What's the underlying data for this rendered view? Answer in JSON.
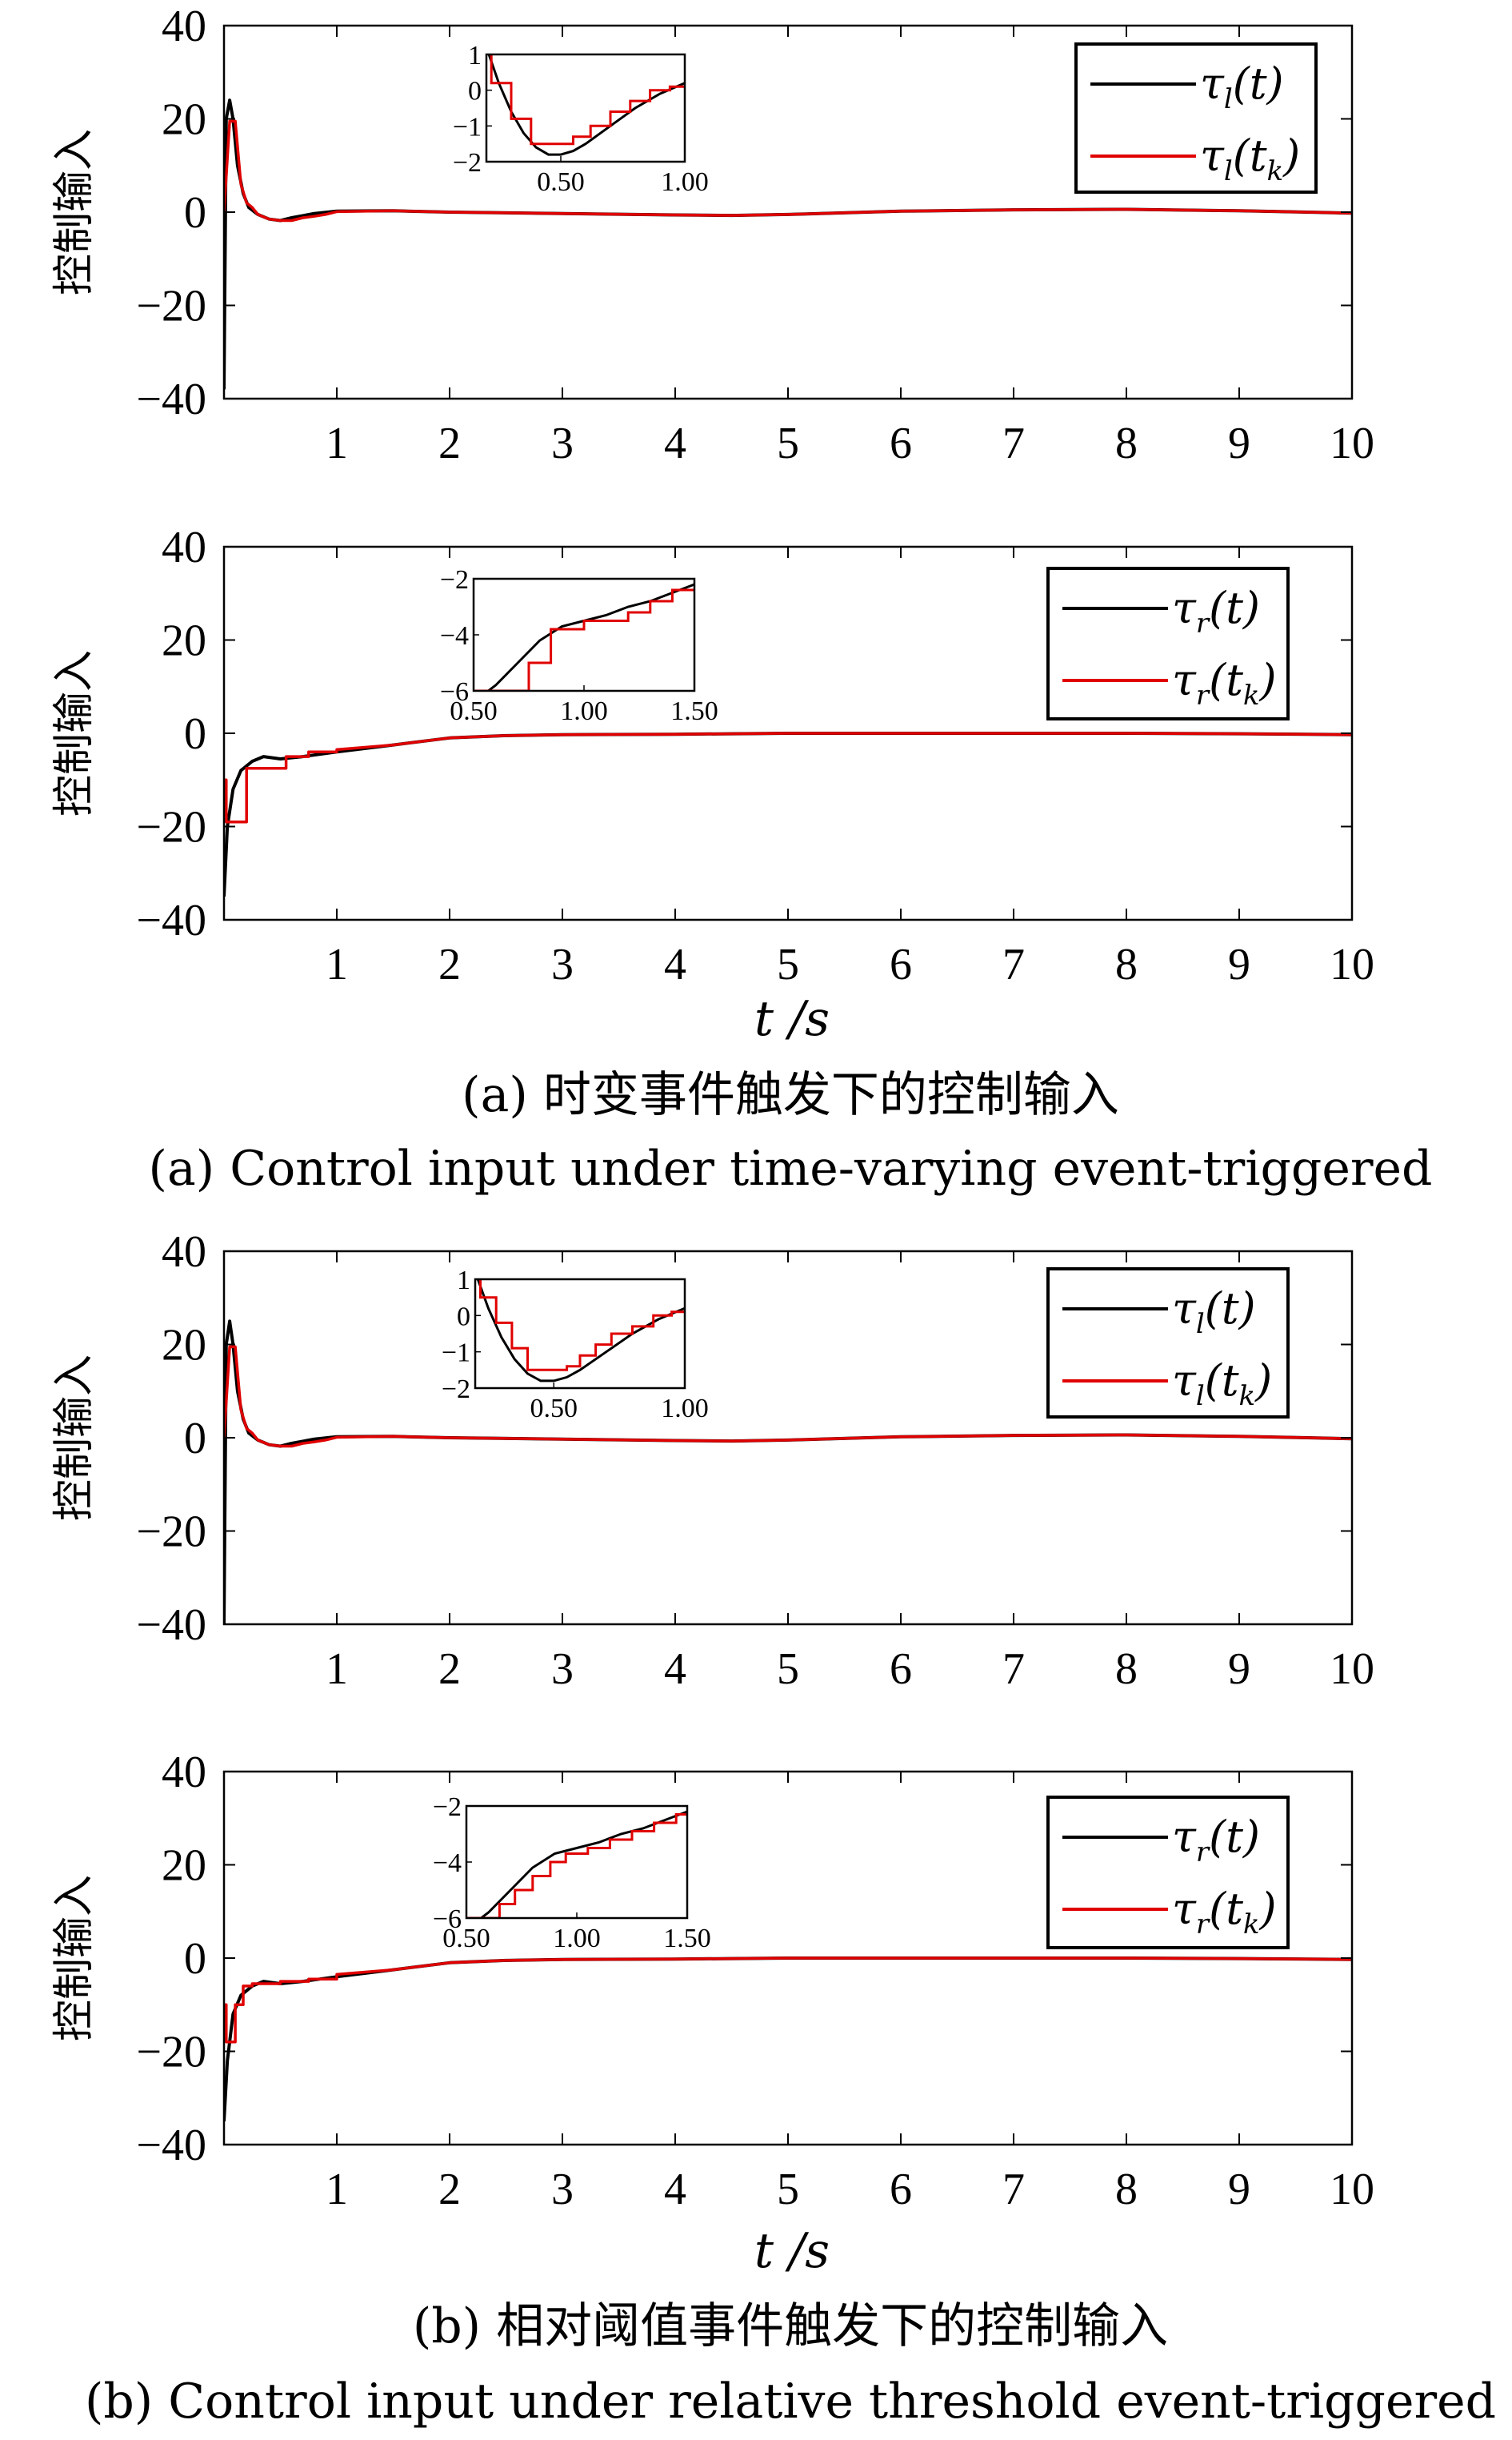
{
  "figure": {
    "caption_a_cn": "(a) 时变事件触发下的控制输入",
    "caption_a_en": "(a) Control input under time-varying event-triggered",
    "caption_b_cn": "(b) 相对阈值事件触发下的控制输入",
    "caption_b_en": "(b) Control input under relative threshold event-triggered",
    "xlabel": "t /s",
    "colors": {
      "continuous": "#000000",
      "triggered": "#e00000"
    }
  },
  "chart_data": [
    {
      "type": "line",
      "id": "a-left",
      "ylabel": "控制输入",
      "xlim": [
        0,
        10
      ],
      "ylim": [
        -40,
        40
      ],
      "xticks": [
        1,
        2,
        3,
        4,
        5,
        6,
        7,
        8,
        9,
        10
      ],
      "yticks": [
        -40,
        -20,
        0,
        20,
        40
      ],
      "legend": [
        "τl(t)",
        "τl(tk)"
      ],
      "legend_placement": "top-right",
      "series": [
        {
          "name": "τl(t)",
          "x": [
            0,
            0.02,
            0.05,
            0.08,
            0.12,
            0.17,
            0.22,
            0.3,
            0.4,
            0.5,
            0.6,
            0.8,
            1,
            1.5,
            2,
            3,
            4,
            4.5,
            5,
            6,
            7,
            8,
            9,
            10
          ],
          "y": [
            -38,
            20,
            24,
            20,
            10,
            4,
            1,
            -0.5,
            -1.5,
            -1.8,
            -1.2,
            -0.3,
            0.2,
            0.3,
            0,
            -0.3,
            -0.6,
            -0.7,
            -0.5,
            0.2,
            0.5,
            0.6,
            0.3,
            -0.2
          ]
        },
        {
          "name": "τl(tk)",
          "x": [
            0,
            0.05,
            0.1,
            0.15,
            0.2,
            0.25,
            0.3,
            0.4,
            0.5,
            0.6,
            0.7,
            0.8,
            0.9,
            1,
            1.5,
            2,
            3,
            4,
            4.5,
            5,
            6,
            7,
            8,
            9,
            10
          ],
          "y": [
            0,
            19.5,
            19.5,
            6,
            2,
            1,
            -0.5,
            -1.5,
            -1.8,
            -1.8,
            -1.2,
            -0.9,
            -0.5,
            0.1,
            0.3,
            0,
            -0.3,
            -0.6,
            -0.7,
            -0.5,
            0.2,
            0.5,
            0.6,
            0.3,
            -0.2
          ]
        }
      ],
      "inset": {
        "xlim": [
          0.2,
          1.0
        ],
        "ylim": [
          -2,
          1
        ],
        "xticks": [
          0.5,
          1.0
        ],
        "xtick_labels": [
          "0.50",
          "1.00"
        ],
        "yticks": [
          -2,
          -1,
          0,
          1
        ],
        "series": [
          {
            "name": "τl(t)",
            "x": [
              0.2,
              0.25,
              0.3,
              0.35,
              0.4,
              0.45,
              0.5,
              0.55,
              0.6,
              0.7,
              0.8,
              0.9,
              1.0
            ],
            "y": [
              1.2,
              0.2,
              -0.6,
              -1.2,
              -1.6,
              -1.8,
              -1.8,
              -1.7,
              -1.5,
              -1.0,
              -0.5,
              -0.1,
              0.2
            ]
          },
          {
            "name": "τl(tk)",
            "x": [
              0.22,
              0.22,
              0.3,
              0.3,
              0.38,
              0.38,
              0.55,
              0.55,
              0.62,
              0.62,
              0.7,
              0.7,
              0.78,
              0.78,
              0.86,
              0.86,
              0.94,
              0.94,
              1.0
            ],
            "y": [
              1.2,
              0.2,
              0.2,
              -0.8,
              -0.8,
              -1.5,
              -1.5,
              -1.3,
              -1.3,
              -1.0,
              -1.0,
              -0.6,
              -0.6,
              -0.3,
              -0.3,
              0.0,
              0.0,
              0.1,
              0.1
            ]
          }
        ]
      }
    },
    {
      "type": "line",
      "id": "a-right",
      "ylabel": "控制输入",
      "xlim": [
        0,
        10
      ],
      "ylim": [
        -40,
        40
      ],
      "xticks": [
        1,
        2,
        3,
        4,
        5,
        6,
        7,
        8,
        9,
        10
      ],
      "yticks": [
        -40,
        -20,
        0,
        20,
        40
      ],
      "legend": [
        "τr(t)",
        "τr(tk)"
      ],
      "legend_placement": "top-right",
      "series": [
        {
          "name": "τr(t)",
          "x": [
            0,
            0.03,
            0.08,
            0.15,
            0.25,
            0.35,
            0.5,
            0.7,
            1,
            1.5,
            2,
            2.5,
            3,
            4,
            5,
            6,
            7,
            8,
            9,
            10
          ],
          "y": [
            -35,
            -20,
            -12,
            -8,
            -6,
            -5,
            -5.5,
            -5,
            -4,
            -2.5,
            -1,
            -0.5,
            -0.3,
            -0.2,
            0,
            0,
            0,
            0,
            -0.1,
            -0.3
          ]
        },
        {
          "name": "τr(tk)",
          "x": [
            0,
            0.02,
            0.02,
            0.1,
            0.1,
            0.2,
            0.2,
            0.55,
            0.55,
            0.75,
            0.75,
            1.0,
            1.0,
            1.5,
            2,
            2.5,
            3,
            4,
            5,
            6,
            7,
            8,
            9,
            10
          ],
          "y": [
            -10,
            -10,
            -19,
            -19,
            -19,
            -19,
            -7.5,
            -7.5,
            -5,
            -5,
            -4,
            -4,
            -3.5,
            -2.5,
            -1,
            -0.5,
            -0.3,
            -0.2,
            0,
            0,
            0,
            0,
            -0.1,
            -0.3
          ]
        }
      ],
      "inset": {
        "xlim": [
          0.5,
          1.5
        ],
        "ylim": [
          -6,
          -2
        ],
        "xticks": [
          0.5,
          1.0,
          1.5
        ],
        "xtick_labels": [
          "0.50",
          "1.00",
          "1.50"
        ],
        "yticks": [
          -6,
          -4,
          -2
        ],
        "series": [
          {
            "name": "τr(t)",
            "x": [
              0.5,
              0.6,
              0.7,
              0.8,
              0.9,
              1.0,
              1.1,
              1.2,
              1.3,
              1.4,
              1.5
            ],
            "y": [
              -6.4,
              -5.8,
              -5.0,
              -4.2,
              -3.7,
              -3.5,
              -3.3,
              -3.0,
              -2.8,
              -2.5,
              -2.2
            ]
          },
          {
            "name": "τr(tk)",
            "x": [
              0.5,
              0.75,
              0.75,
              0.85,
              0.85,
              1.0,
              1.0,
              1.2,
              1.2,
              1.3,
              1.3,
              1.4,
              1.4,
              1.5
            ],
            "y": [
              -6,
              -6,
              -5,
              -5,
              -3.8,
              -3.8,
              -3.5,
              -3.5,
              -3.2,
              -3.2,
              -2.8,
              -2.8,
              -2.4,
              -2.4
            ]
          }
        ]
      }
    },
    {
      "type": "line",
      "id": "b-left",
      "ylabel": "控制输入",
      "xlim": [
        0,
        10
      ],
      "ylim": [
        -40,
        40
      ],
      "xticks": [
        1,
        2,
        3,
        4,
        5,
        6,
        7,
        8,
        9,
        10
      ],
      "yticks": [
        -40,
        -20,
        0,
        20,
        40
      ],
      "legend": [
        "τl(t)",
        "τl(tk)"
      ],
      "legend_placement": "top-right",
      "series": [
        {
          "name": "τl(t)",
          "x": [
            0,
            0.02,
            0.05,
            0.08,
            0.12,
            0.17,
            0.22,
            0.3,
            0.4,
            0.5,
            0.6,
            0.8,
            1,
            1.5,
            2,
            3,
            4,
            4.5,
            5,
            6,
            7,
            8,
            9,
            10
          ],
          "y": [
            -40,
            20,
            25,
            20,
            10,
            4,
            1,
            -0.5,
            -1.5,
            -1.8,
            -1.2,
            -0.3,
            0.2,
            0.3,
            0,
            -0.3,
            -0.6,
            -0.7,
            -0.5,
            0.2,
            0.5,
            0.6,
            0.3,
            -0.2
          ]
        },
        {
          "name": "τl(tk)",
          "x": [
            0,
            0.05,
            0.1,
            0.15,
            0.2,
            0.25,
            0.3,
            0.4,
            0.5,
            0.6,
            0.7,
            0.8,
            0.9,
            1,
            1.5,
            2,
            3,
            4,
            4.5,
            5,
            6,
            7,
            8,
            9,
            10
          ],
          "y": [
            0,
            19.5,
            19.5,
            6,
            2,
            1,
            -0.5,
            -1.5,
            -1.8,
            -1.8,
            -1.2,
            -0.9,
            -0.5,
            0.1,
            0.3,
            0,
            -0.3,
            -0.6,
            -0.7,
            -0.5,
            0.2,
            0.5,
            0.6,
            0.3,
            -0.2
          ]
        }
      ],
      "inset": {
        "xlim": [
          0.2,
          1.0
        ],
        "ylim": [
          -2,
          1
        ],
        "xticks": [
          0.5,
          1.0
        ],
        "xtick_labels": [
          "0.50",
          "1.00"
        ],
        "yticks": [
          -2,
          -1,
          0,
          1
        ],
        "series": [
          {
            "name": "τl(t)",
            "x": [
              0.2,
              0.25,
              0.3,
              0.35,
              0.4,
              0.45,
              0.5,
              0.55,
              0.6,
              0.7,
              0.8,
              0.9,
              1.0
            ],
            "y": [
              1.2,
              0.2,
              -0.6,
              -1.2,
              -1.6,
              -1.8,
              -1.8,
              -1.7,
              -1.5,
              -1.0,
              -0.5,
              -0.1,
              0.2
            ]
          },
          {
            "name": "τl(tk)",
            "x": [
              0.22,
              0.22,
              0.28,
              0.28,
              0.34,
              0.34,
              0.4,
              0.4,
              0.55,
              0.55,
              0.6,
              0.6,
              0.66,
              0.66,
              0.72,
              0.72,
              0.8,
              0.8,
              0.88,
              0.88,
              0.95,
              0.95,
              1.0
            ],
            "y": [
              1.2,
              0.5,
              0.5,
              -0.2,
              -0.2,
              -0.9,
              -0.9,
              -1.5,
              -1.5,
              -1.4,
              -1.4,
              -1.1,
              -1.1,
              -0.8,
              -0.8,
              -0.5,
              -0.5,
              -0.3,
              -0.3,
              0.0,
              0.0,
              0.1,
              0.1
            ]
          }
        ]
      }
    },
    {
      "type": "line",
      "id": "b-right",
      "ylabel": "控制输入",
      "xlim": [
        0,
        10
      ],
      "ylim": [
        -40,
        40
      ],
      "xticks": [
        1,
        2,
        3,
        4,
        5,
        6,
        7,
        8,
        9,
        10
      ],
      "yticks": [
        -40,
        -20,
        0,
        20,
        40
      ],
      "legend": [
        "τr(t)",
        "τr(tk)"
      ],
      "legend_placement": "top-right",
      "series": [
        {
          "name": "τr(t)",
          "x": [
            0,
            0.03,
            0.08,
            0.15,
            0.25,
            0.35,
            0.5,
            0.7,
            1,
            1.5,
            2,
            2.5,
            3,
            4,
            5,
            6,
            7,
            8,
            9,
            10
          ],
          "y": [
            -35,
            -22,
            -12,
            -8,
            -6,
            -5,
            -5.5,
            -5,
            -4,
            -2.5,
            -1,
            -0.5,
            -0.3,
            -0.2,
            0,
            0,
            0,
            0,
            -0.1,
            -0.3
          ]
        },
        {
          "name": "τr(tk)",
          "x": [
            0,
            0.02,
            0.02,
            0.1,
            0.1,
            0.17,
            0.17,
            0.25,
            0.25,
            0.35,
            0.35,
            0.5,
            0.5,
            0.75,
            0.75,
            1.0,
            1.0,
            1.5,
            2,
            2.5,
            3,
            4,
            5,
            6,
            7,
            8,
            9,
            10
          ],
          "y": [
            -10,
            -10,
            -18,
            -18,
            -10,
            -10,
            -6,
            -6,
            -5.5,
            -5.5,
            -5.5,
            -5.5,
            -5,
            -5,
            -4.5,
            -4.5,
            -3.5,
            -2.5,
            -1,
            -0.5,
            -0.3,
            -0.2,
            0,
            0,
            0,
            0,
            -0.1,
            -0.3
          ]
        }
      ],
      "inset": {
        "xlim": [
          0.5,
          1.5
        ],
        "ylim": [
          -6,
          -2
        ],
        "xticks": [
          0.5,
          1.0,
          1.5
        ],
        "xtick_labels": [
          "0.50",
          "1.00",
          "1.50"
        ],
        "yticks": [
          -6,
          -4,
          -2
        ],
        "series": [
          {
            "name": "τr(t)",
            "x": [
              0.5,
              0.6,
              0.7,
              0.8,
              0.9,
              1.0,
              1.1,
              1.2,
              1.3,
              1.4,
              1.5
            ],
            "y": [
              -6.4,
              -5.8,
              -5.0,
              -4.2,
              -3.7,
              -3.5,
              -3.3,
              -3.0,
              -2.8,
              -2.5,
              -2.2
            ]
          },
          {
            "name": "τr(tk)",
            "x": [
              0.5,
              0.65,
              0.65,
              0.72,
              0.72,
              0.8,
              0.8,
              0.88,
              0.88,
              0.95,
              0.95,
              1.05,
              1.05,
              1.15,
              1.15,
              1.25,
              1.25,
              1.35,
              1.35,
              1.45,
              1.45,
              1.5
            ],
            "y": [
              -6,
              -6,
              -5.5,
              -5.5,
              -5,
              -5,
              -4.5,
              -4.5,
              -4,
              -4,
              -3.7,
              -3.7,
              -3.5,
              -3.5,
              -3.2,
              -3.2,
              -2.9,
              -2.9,
              -2.6,
              -2.6,
              -2.3,
              -2.3
            ]
          }
        ]
      }
    }
  ]
}
